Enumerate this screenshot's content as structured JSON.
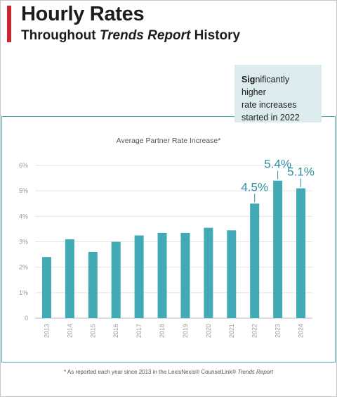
{
  "header": {
    "title": "Hourly Rates",
    "subtitle_prefix": "Throughout ",
    "subtitle_italic": "Trends Report",
    "subtitle_suffix": " History"
  },
  "callout": {
    "bold_part": "Sig",
    "line1_rest": "nificantly higher",
    "line2": "rate increases",
    "line3": "started in 2022"
  },
  "footnote": {
    "prefix": "* As reported each year since 2013 in the LexisNexis® CounselLink® ",
    "italic": "Trends Report"
  },
  "colors": {
    "bar": "#41aab5",
    "highlight_label": "#2f8ea0",
    "accent": "#c8262d"
  },
  "chart_data": {
    "type": "bar",
    "title": "Average Partner Rate Increase*",
    "categories": [
      "2013",
      "2014",
      "2015",
      "2016",
      "2017",
      "2018",
      "2019",
      "2020",
      "2021",
      "2022",
      "2023",
      "2024"
    ],
    "values": [
      2.4,
      3.1,
      2.6,
      3.0,
      3.25,
      3.35,
      3.35,
      3.55,
      3.45,
      4.5,
      5.4,
      5.1
    ],
    "ylim": [
      0,
      6
    ],
    "yticks": [
      "0",
      "1%",
      "2%",
      "3%",
      "4%",
      "5%",
      "6%"
    ],
    "data_labels": [
      {
        "category": "2022",
        "text": "4.5%"
      },
      {
        "category": "2023",
        "text": "5.4%"
      },
      {
        "category": "2024",
        "text": "5.1%"
      }
    ],
    "grid": true
  }
}
